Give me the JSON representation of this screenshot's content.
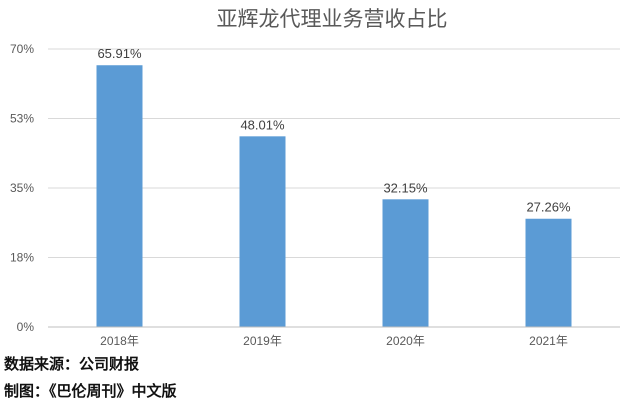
{
  "chart_data": {
    "type": "bar",
    "title": "亚辉龙代理业务营收占比",
    "categories": [
      "2018年",
      "2019年",
      "2020年",
      "2021年"
    ],
    "values": [
      65.91,
      48.01,
      32.15,
      27.26
    ],
    "data_labels": [
      "65.91%",
      "48.01%",
      "32.15%",
      "27.26%"
    ],
    "y_ticks": [
      0,
      17.5,
      35,
      52.5,
      70
    ],
    "y_tick_labels": [
      "0%",
      "18%",
      "35%",
      "53%",
      "70%"
    ],
    "ylim": [
      0,
      70
    ],
    "grid": true,
    "bar_color": "#5b9bd5"
  },
  "footer": {
    "source": "数据来源：公司财报",
    "credit": "制图：《巴伦周刊》中文版"
  }
}
